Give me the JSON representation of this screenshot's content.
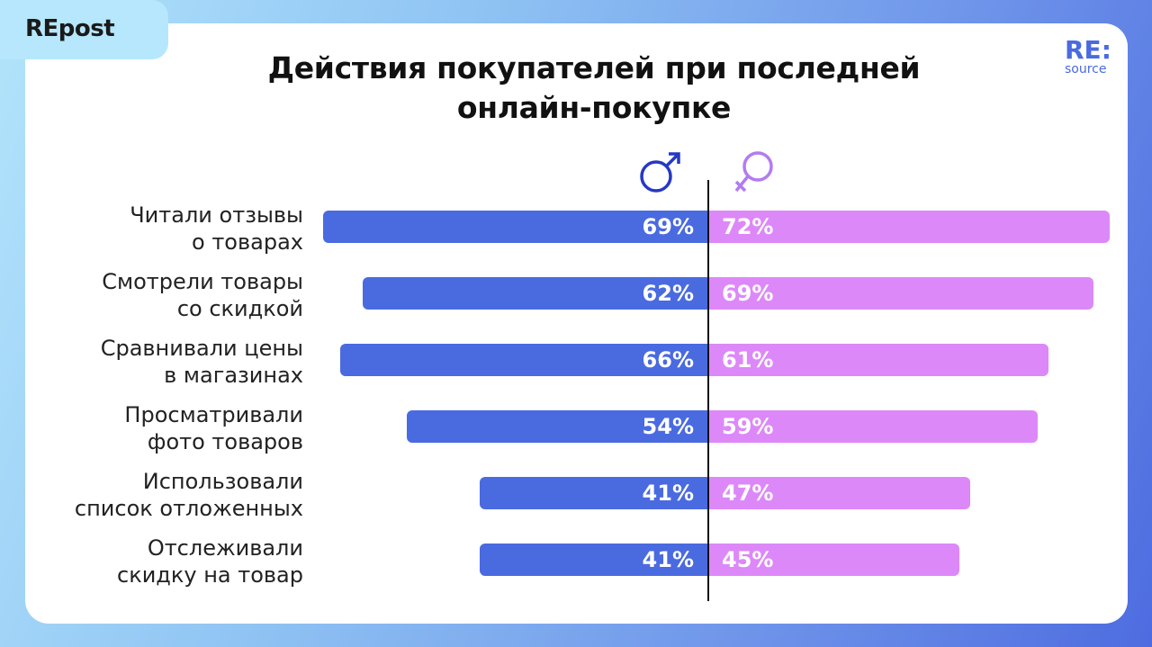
{
  "brand_tab": "REpost",
  "logo": {
    "top": "RE:",
    "bottom": "source"
  },
  "chart_data": {
    "type": "bar",
    "orientation": "horizontal-diverging",
    "title_lines": [
      "Действия покупателей при последней",
      "онлайн-покупке"
    ],
    "categories": [
      [
        "Читали отзывы",
        "о товарах"
      ],
      [
        "Смотрели товары",
        "со скидкой"
      ],
      [
        "Сравнивали цены",
        "в магазинах"
      ],
      [
        "Просматривали",
        "фото товаров"
      ],
      [
        "Использовали",
        "список отложенных"
      ],
      [
        "Отслеживали",
        "скидку на товар"
      ]
    ],
    "series": [
      {
        "symbol": "male",
        "color": "#4a6ae0",
        "values": [
          69,
          62,
          66,
          54,
          41,
          41
        ],
        "labels": [
          "69%",
          "62%",
          "66%",
          "54%",
          "41%",
          "41%"
        ]
      },
      {
        "symbol": "female",
        "color": "#dd88f8",
        "values": [
          72,
          69,
          61,
          59,
          47,
          45
        ],
        "labels": [
          "72%",
          "69%",
          "61%",
          "59%",
          "47%",
          "45%"
        ]
      }
    ],
    "unit": "%"
  }
}
